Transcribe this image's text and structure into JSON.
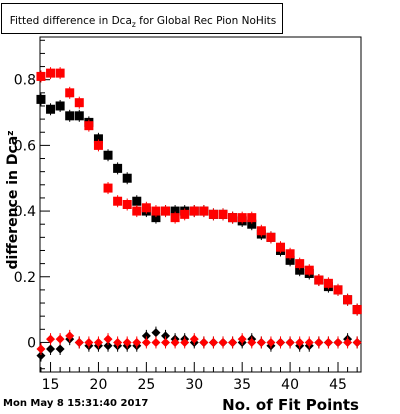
{
  "chart_data": {
    "type": "scatter",
    "title": "Fitted difference in Dca",
    "title_sub": "z",
    "title_suffix": " for Global Rec Pion NoHits",
    "xlabel": "No. of Fit Points",
    "ylabel": "difference in Dca",
    "ylabel_sub": "z",
    "xlim": [
      13.9,
      47.4
    ],
    "ylim": [
      -0.09,
      0.93
    ],
    "x_ticks": [
      15,
      20,
      25,
      30,
      35,
      40,
      45
    ],
    "y_ticks": [
      0,
      0.2,
      0.4,
      0.6,
      0.8
    ],
    "grid": false,
    "series": [
      {
        "marker": "square",
        "color": "#000000",
        "x": [
          14,
          15,
          16,
          17,
          18,
          19,
          20,
          21,
          22,
          23,
          24,
          25,
          26,
          27,
          28,
          29,
          30,
          31,
          32,
          33,
          34,
          35,
          36,
          37,
          38,
          39,
          40,
          41,
          42,
          43,
          44,
          45,
          46,
          47
        ],
        "y": [
          0.74,
          0.71,
          0.72,
          0.69,
          0.69,
          0.67,
          0.62,
          0.57,
          0.53,
          0.5,
          0.43,
          0.4,
          0.38,
          0.4,
          0.4,
          0.4,
          0.4,
          0.4,
          0.39,
          0.39,
          0.38,
          0.37,
          0.36,
          0.33,
          0.32,
          0.28,
          0.25,
          0.22,
          0.21,
          0.19,
          0.17,
          0.16,
          0.13,
          0.1
        ]
      },
      {
        "marker": "square",
        "color": "#ff0000",
        "x": [
          14,
          15,
          16,
          17,
          18,
          19,
          20,
          21,
          22,
          23,
          24,
          25,
          26,
          27,
          28,
          29,
          30,
          31,
          32,
          33,
          34,
          35,
          36,
          37,
          38,
          39,
          40,
          41,
          42,
          43,
          44,
          45,
          46,
          47
        ],
        "y": [
          0.81,
          0.82,
          0.82,
          0.76,
          0.73,
          0.66,
          0.6,
          0.47,
          0.43,
          0.42,
          0.4,
          0.41,
          0.4,
          0.4,
          0.38,
          0.39,
          0.4,
          0.4,
          0.39,
          0.39,
          0.38,
          0.38,
          0.38,
          0.34,
          0.32,
          0.29,
          0.27,
          0.24,
          0.22,
          0.19,
          0.18,
          0.16,
          0.13,
          0.1
        ]
      },
      {
        "marker": "diamond",
        "color": "#000000",
        "x": [
          14,
          15,
          16,
          17,
          18,
          19,
          20,
          21,
          22,
          23,
          24,
          25,
          26,
          27,
          28,
          29,
          30,
          31,
          32,
          33,
          34,
          35,
          36,
          37,
          38,
          39,
          40,
          41,
          42,
          43,
          44,
          45,
          46,
          47
        ],
        "y": [
          -0.04,
          -0.02,
          -0.02,
          0.01,
          0.0,
          -0.01,
          -0.01,
          -0.01,
          -0.01,
          -0.01,
          -0.01,
          0.02,
          0.03,
          0.02,
          0.01,
          0.01,
          0.0,
          0.0,
          0.0,
          0.0,
          0.0,
          0.0,
          0.01,
          0.0,
          -0.01,
          0.0,
          0.0,
          -0.01,
          -0.01,
          0.0,
          0.0,
          0.0,
          0.01,
          0.0
        ]
      },
      {
        "marker": "diamond",
        "color": "#ff0000",
        "x": [
          14,
          15,
          16,
          17,
          18,
          19,
          20,
          21,
          22,
          23,
          24,
          25,
          26,
          27,
          28,
          29,
          30,
          31,
          32,
          33,
          34,
          35,
          36,
          37,
          38,
          39,
          40,
          41,
          42,
          43,
          44,
          45,
          46,
          47
        ],
        "y": [
          -0.02,
          0.01,
          0.01,
          0.02,
          0.0,
          0.0,
          0.0,
          0.01,
          0.0,
          0.0,
          0.0,
          0.0,
          0.0,
          0.0,
          0.0,
          0.0,
          0.01,
          0.0,
          0.0,
          0.0,
          0.0,
          0.01,
          0.0,
          0.0,
          0.0,
          0.0,
          0.0,
          0.0,
          0.0,
          0.0,
          0.0,
          0.0,
          0.0,
          0.0
        ]
      }
    ]
  },
  "timestamp": "Mon May  8 15:31:40 2017"
}
